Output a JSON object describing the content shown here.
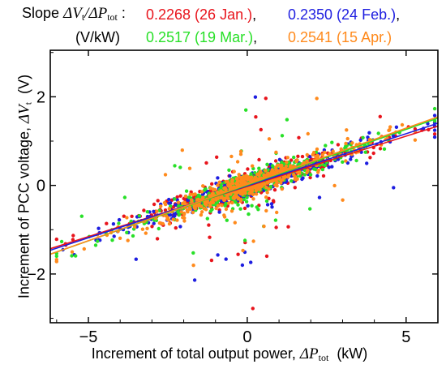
{
  "chart_data": {
    "type": "scatter",
    "legend_title": {
      "prefix": "Slope",
      "ratio_num_var": "ΔV",
      "ratio_num_sub": "t",
      "ratio_sep": "/",
      "ratio_den_var": "ΔP",
      "ratio_den_sub": "tot",
      "colon": ":",
      "unit": "(V/kW)"
    },
    "series": [
      {
        "name": "0.2268 (26 Jan.)",
        "slope": 0.2268,
        "color": "#e8141c"
      },
      {
        "name": "0.2350 (24 Feb.)",
        "slope": 0.235,
        "color": "#1e1ee0"
      },
      {
        "name": "0.2517 (19 Mar.)",
        "slope": 0.2517,
        "color": "#28e028"
      },
      {
        "name": "0.2541 (15 Apr.)",
        "slope": 0.2541,
        "color": "#ff8a1c"
      }
    ],
    "xlabel": {
      "text": "Increment of total output power, ",
      "var": "ΔP",
      "sub": "tot",
      "unit": "(kW)"
    },
    "ylabel": {
      "text": "Increment of PCC voltage, ",
      "var": "ΔV",
      "sub": "t",
      "unit": "(V)"
    },
    "xlim": [
      -6.2,
      6.0
    ],
    "ylim": [
      -3.1,
      3.05
    ],
    "xticks": [
      -5,
      0,
      5
    ],
    "yticks": [
      -2,
      0,
      2
    ],
    "grid": false
  }
}
